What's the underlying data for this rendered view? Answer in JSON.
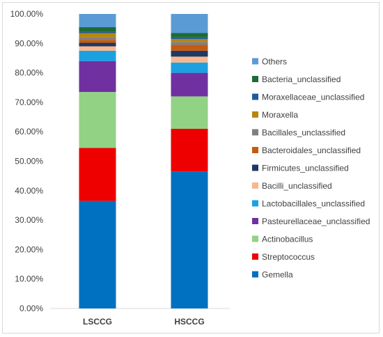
{
  "chart_data": {
    "type": "bar",
    "stacked": true,
    "normalized": true,
    "categories": [
      "LSCCG",
      "HSCCG"
    ],
    "ylim": [
      0,
      100
    ],
    "yticks": [
      "0.00%",
      "10.00%",
      "20.00%",
      "30.00%",
      "40.00%",
      "50.00%",
      "60.00%",
      "70.00%",
      "80.00%",
      "90.00%",
      "100.00%"
    ],
    "legend_position": "right",
    "grid": false,
    "series": [
      {
        "name": "Gemella",
        "color": "#0070C0",
        "values": [
          36.5,
          46.5
        ]
      },
      {
        "name": "Streptococcus",
        "color": "#EE0000",
        "values": [
          18.0,
          14.5
        ]
      },
      {
        "name": "Actinobacillus",
        "color": "#92D285",
        "values": [
          19.0,
          11.0
        ]
      },
      {
        "name": "Pasteurellaceae_unclassified",
        "color": "#7030A0",
        "values": [
          10.5,
          8.0
        ]
      },
      {
        "name": "Lactobacillales_unclassified",
        "color": "#1BA1E2",
        "values": [
          3.5,
          3.5
        ]
      },
      {
        "name": "Bacilli_unclassified",
        "color": "#F8B78F",
        "values": [
          1.5,
          2.0
        ]
      },
      {
        "name": "Firmicutes_unclassified",
        "color": "#1F3864",
        "values": [
          1.2,
          2.0
        ]
      },
      {
        "name": "Bacteroidales_unclassified",
        "color": "#C55A11",
        "values": [
          1.0,
          2.0
        ]
      },
      {
        "name": "Bacillales_unclassified",
        "color": "#7F7F7F",
        "values": [
          0.8,
          1.0
        ]
      },
      {
        "name": "Moraxella",
        "color": "#B8860B",
        "values": [
          1.5,
          1.0
        ]
      },
      {
        "name": "Moraxellaceae_unclassified",
        "color": "#1F5C99",
        "values": [
          0.5,
          0.5
        ]
      },
      {
        "name": "Bacteria_unclassified",
        "color": "#1E6B34",
        "values": [
          1.5,
          1.5
        ]
      },
      {
        "name": "Others",
        "color": "#5B9BD5",
        "values": [
          4.5,
          6.5
        ]
      }
    ]
  }
}
